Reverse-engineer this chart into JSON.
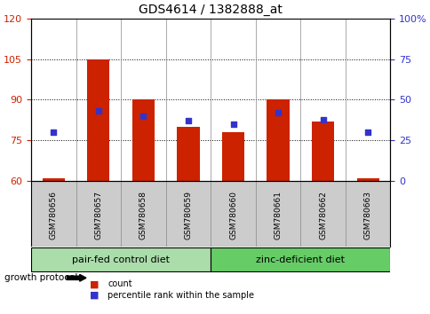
{
  "title": "GDS4614 / 1382888_at",
  "samples": [
    "GSM780656",
    "GSM780657",
    "GSM780658",
    "GSM780659",
    "GSM780660",
    "GSM780661",
    "GSM780662",
    "GSM780663"
  ],
  "counts": [
    61,
    105,
    90,
    80,
    78,
    90,
    82,
    61
  ],
  "percentiles": [
    30,
    43,
    40,
    37,
    35,
    42,
    38,
    30
  ],
  "ylim_left": [
    60,
    120
  ],
  "ylim_right": [
    0,
    100
  ],
  "yticks_left": [
    60,
    75,
    90,
    105,
    120
  ],
  "yticks_right": [
    0,
    25,
    50,
    75,
    100
  ],
  "bar_color": "#cc2200",
  "dot_color": "#3333cc",
  "group1_label": "pair-fed control diet",
  "group2_label": "zinc-deficient diet",
  "group1_color": "#aaddaa",
  "group2_color": "#66cc66",
  "group_protocol_label": "growth protocol",
  "legend_count": "count",
  "legend_percentile": "percentile rank within the sample",
  "grid_color": "#000000",
  "axis_label_color_left": "#cc2200",
  "axis_label_color_right": "#3333cc",
  "bar_bottom": 60,
  "background_color": "#ffffff",
  "plot_bg_color": "#ffffff",
  "label_area_color": "#cccccc"
}
